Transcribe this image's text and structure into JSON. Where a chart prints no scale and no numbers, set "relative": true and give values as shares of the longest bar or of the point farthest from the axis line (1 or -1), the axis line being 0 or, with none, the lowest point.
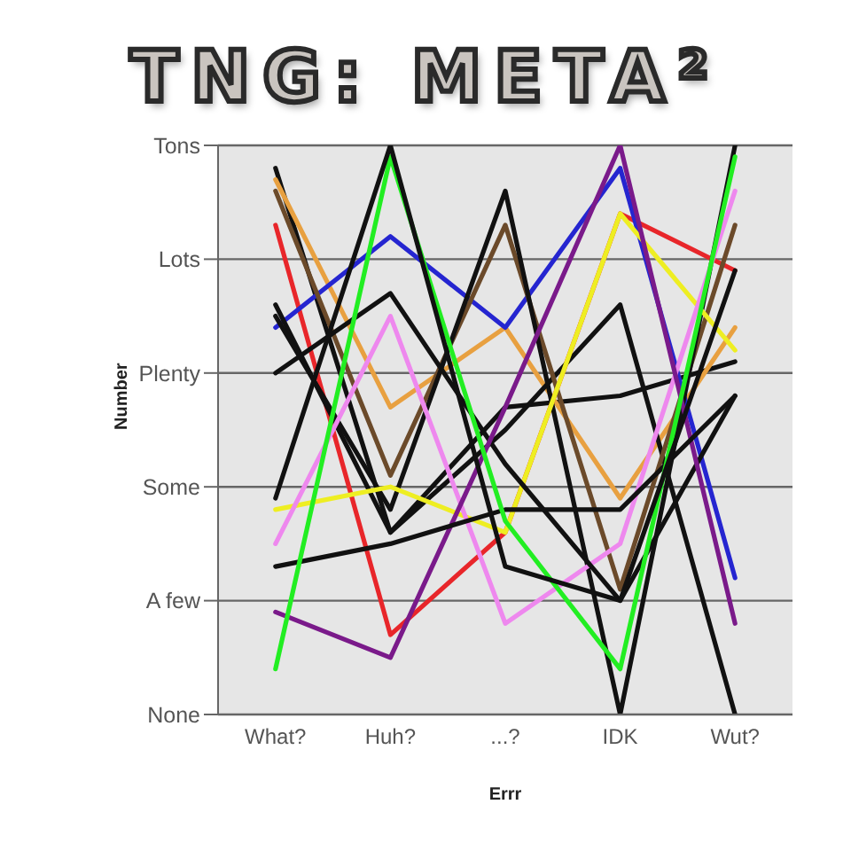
{
  "chart_data": {
    "type": "line",
    "title": "TNG: META²",
    "xlabel": "Errr",
    "ylabel": "Number",
    "categories": [
      "What?",
      "Huh?",
      "...?",
      "IDK",
      "Wut?"
    ],
    "y_categories": [
      "Tons",
      "Lots",
      "Plenty",
      "Some",
      "A few",
      "None"
    ],
    "relative": true,
    "grid": "y",
    "marker": "none",
    "line_style": "solid",
    "series": [
      {
        "color": "#111111",
        "values": [
          0.96,
          0.32,
          0.54,
          0.56,
          0.62
        ]
      },
      {
        "color": "#e8a040",
        "values": [
          0.94,
          0.54,
          0.68,
          0.38,
          0.68
        ]
      },
      {
        "color": "#e8262a",
        "values": [
          0.86,
          0.14,
          0.32,
          0.88,
          0.78
        ]
      },
      {
        "color": "#2525d0",
        "values": [
          0.68,
          0.84,
          0.68,
          0.96,
          0.24
        ]
      },
      {
        "color": "#111111",
        "values": [
          0.72,
          0.32,
          0.5,
          0.72,
          0
        ]
      },
      {
        "color": "#6b4a2a",
        "values": [
          0.92,
          0.42,
          0.86,
          0.22,
          0.86
        ]
      },
      {
        "color": "#111111",
        "values": [
          0.7,
          0.36,
          0.92,
          0,
          1
        ]
      },
      {
        "color": "#eeee22",
        "values": [
          0.36,
          0.4,
          0.32,
          0.88,
          0.64
        ]
      },
      {
        "color": "#ee88ee",
        "values": [
          0.3,
          0.7,
          0.16,
          0.3,
          0.92
        ]
      },
      {
        "color": "#111111",
        "values": [
          0.6,
          0.74,
          0.44,
          0.2,
          0.56
        ]
      },
      {
        "color": "#7a1a8a",
        "values": [
          0.18,
          0.1,
          0.54,
          1,
          0.16
        ]
      },
      {
        "color": "#111111",
        "values": [
          0.26,
          0.3,
          0.36,
          0.36,
          0.56
        ]
      },
      {
        "color": "#22ee22",
        "values": [
          0.08,
          0.98,
          0.34,
          0.08,
          0.98
        ]
      },
      {
        "color": "#111111",
        "values": [
          0.38,
          1,
          0.26,
          0.2,
          0.78
        ]
      }
    ]
  }
}
